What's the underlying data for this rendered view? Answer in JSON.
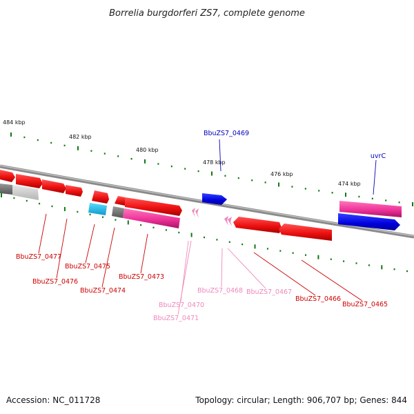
{
  "title": "Borrelia burgdorferi ZS7, complete genome",
  "footer": {
    "accession": "Accession: NC_011728",
    "summary": "Topology: circular; Length: 906,707 bp; Genes: 844"
  },
  "kbp_labels": [
    "484 kbp",
    "482 kbp",
    "480 kbp",
    "478 kbp",
    "476 kbp",
    "474 kbp"
  ],
  "gene_labels": [
    "BbuZS7_0469",
    "uvrC",
    "BbuZS7_0477",
    "BbuZS7_0476",
    "BbuZS7_0475",
    "BbuZS7_0474",
    "BbuZS7_0473",
    "BbuZS7_0470",
    "BbuZS7_0471",
    "BbuZS7_0468",
    "BbuZS7_0467",
    "BbuZS7_0466",
    "BbuZS7_0465"
  ],
  "colors": {
    "cds": "#ee1111",
    "highlight": "#0000dd",
    "rna": "#ee4499",
    "pseudo": "#ee88bb",
    "tick": "#117711",
    "backbone": "#888888",
    "other": "#22aadd"
  }
}
